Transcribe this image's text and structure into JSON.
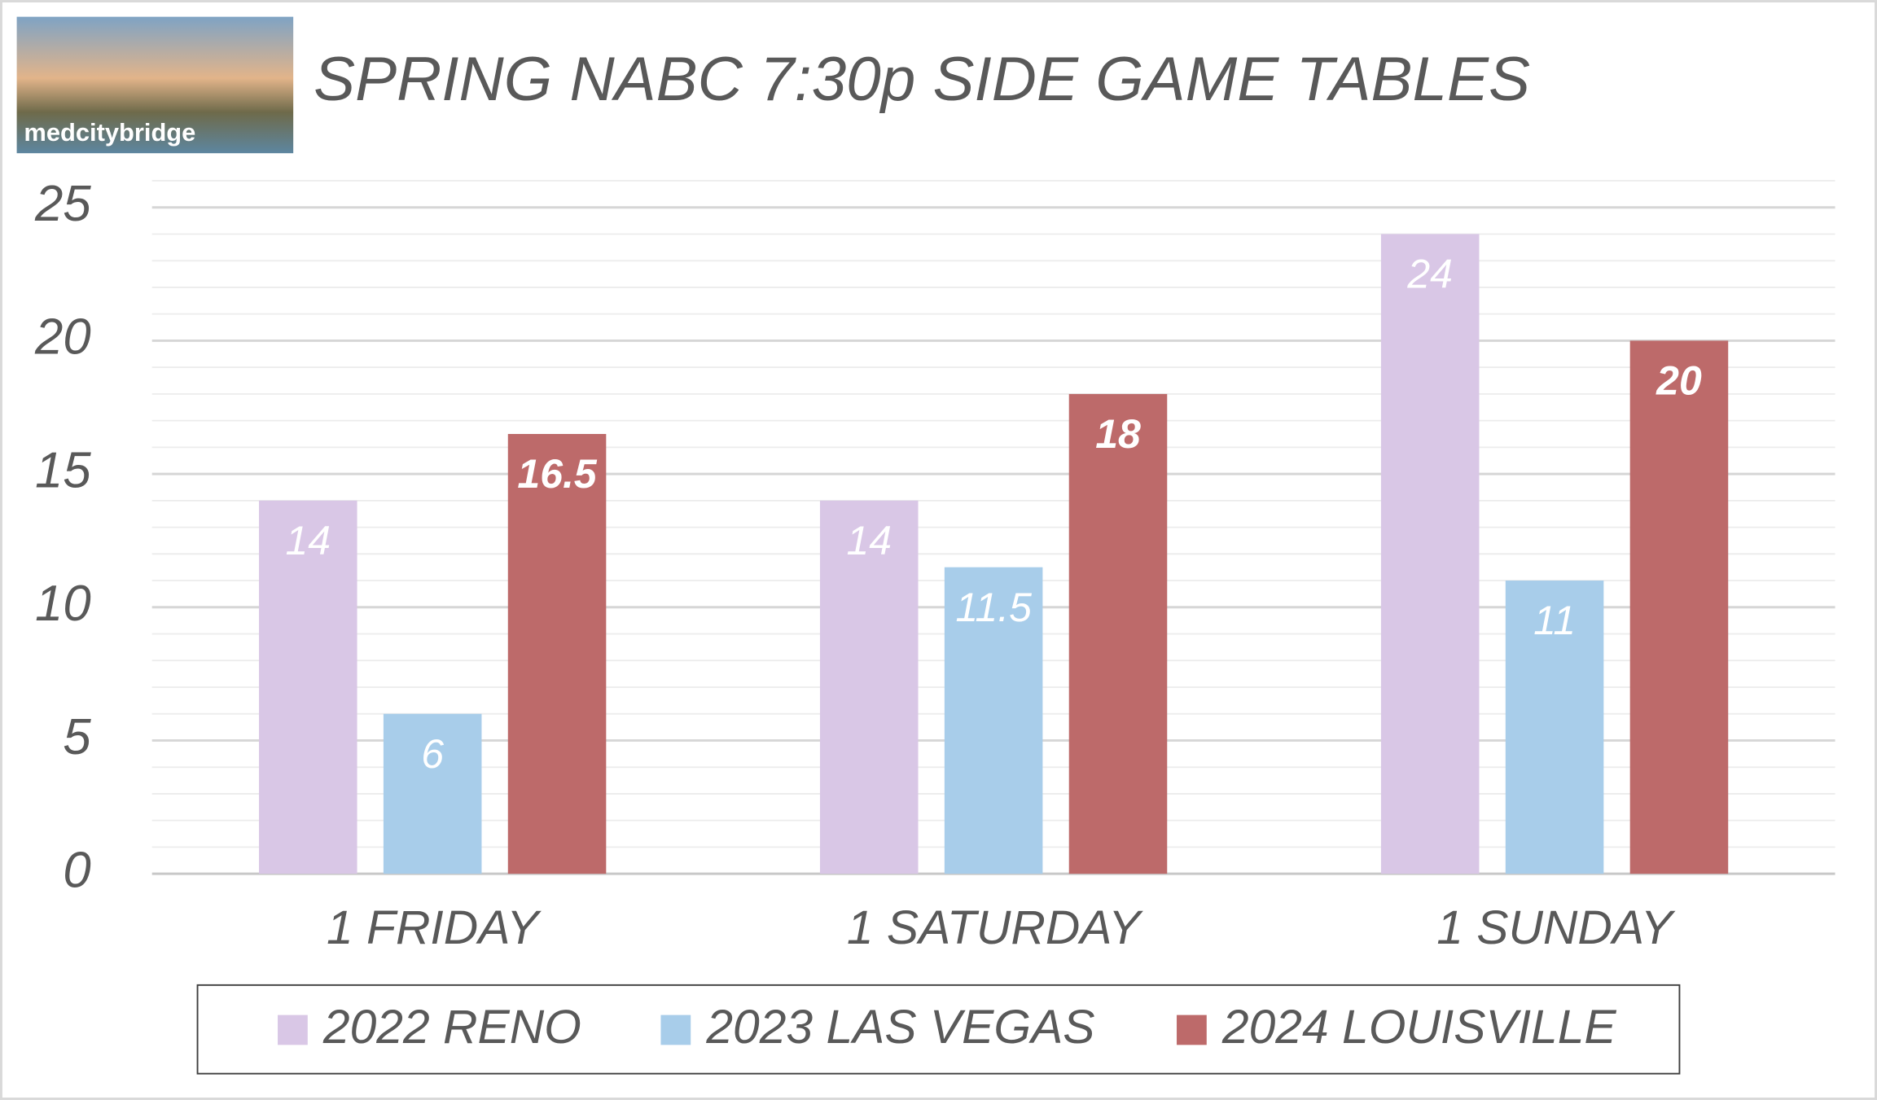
{
  "chart_data": {
    "type": "bar",
    "title": "SPRING NABC 7:30p SIDE GAME TABLES",
    "logo_text": "medcitybridge",
    "categories": [
      "1 FRIDAY",
      "1 SATURDAY",
      "1 SUNDAY"
    ],
    "series": [
      {
        "name": "2022 RENO",
        "color": "#d9c7e6",
        "values": [
          14,
          14,
          24
        ]
      },
      {
        "name": "2023 LAS VEGAS",
        "color": "#a8cdea",
        "values": [
          6,
          11.5,
          11
        ]
      },
      {
        "name": "2024 LOUISVILLE",
        "color": "#bd6a6a",
        "values": [
          16.5,
          18,
          20
        ]
      }
    ],
    "ylim": [
      0,
      26
    ],
    "yticks": [
      0,
      5,
      10,
      15,
      20,
      25
    ],
    "minor_yticks": [
      1,
      2,
      3,
      4,
      6,
      7,
      8,
      9,
      11,
      12,
      13,
      14,
      16,
      17,
      18,
      19,
      21,
      22,
      23,
      24,
      26
    ],
    "grid": true,
    "legend": "bottom"
  }
}
